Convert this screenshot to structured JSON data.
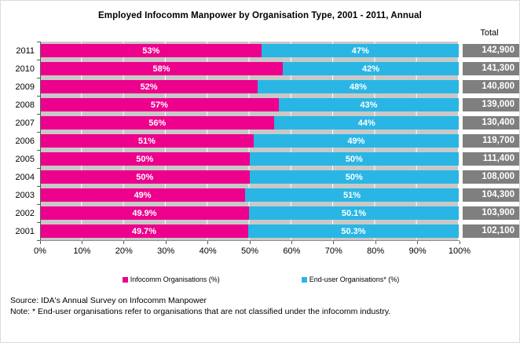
{
  "title": "Employed Infocomm Manpower by Organisation Type, 2001 - 2011, Annual",
  "total_label": "Total",
  "colors": {
    "infocomm": "#EC008C",
    "enduser": "#29B6E5",
    "total_badge": "#7F7F7F",
    "plot_background": "#C8C8C8",
    "gridline": "#FFFFFF",
    "axis": "#595959"
  },
  "footer": {
    "source": "Source: IDA's Annual Survey on Infocomm Manpower",
    "note": "Note: * End-user organisations refer to organisations that are not classified under the infocomm industry."
  },
  "chart_data": {
    "type": "bar",
    "variant": "horizontal-stacked",
    "title": "Employed Infocomm Manpower by Organisation Type, 2001 - 2011, Annual",
    "categories": [
      "2011",
      "2010",
      "2009",
      "2008",
      "2007",
      "2006",
      "2005",
      "2004",
      "2003",
      "2002",
      "2001"
    ],
    "series": [
      {
        "name": "Infocomm Organisations (%)",
        "color": "#EC008C",
        "values": [
          53,
          58,
          52,
          57,
          56,
          51,
          50,
          50,
          49,
          49.9,
          49.7
        ],
        "labels": [
          "53%",
          "58%",
          "52%",
          "57%",
          "56%",
          "51%",
          "50%",
          "50%",
          "49%",
          "49.9%",
          "49.7%"
        ]
      },
      {
        "name": "End-user Organisations* (%)",
        "color": "#29B6E5",
        "values": [
          47,
          42,
          48,
          43,
          44,
          49,
          50,
          50,
          51,
          50.1,
          50.3
        ],
        "labels": [
          "47%",
          "42%",
          "48%",
          "43%",
          "44%",
          "49%",
          "50%",
          "50%",
          "51%",
          "50.1%",
          "50.3%"
        ]
      }
    ],
    "totals": [
      "142,900",
      "141,300",
      "140,800",
      "139,000",
      "130,400",
      "119,700",
      "111,400",
      "108,000",
      "104,300",
      "103,900",
      "102,100"
    ],
    "x_ticks": [
      "0%",
      "10%",
      "20%",
      "30%",
      "40%",
      "50%",
      "60%",
      "70%",
      "80%",
      "90%",
      "100%"
    ],
    "xlim": [
      0,
      100
    ],
    "grid": true,
    "legend_position": "bottom"
  }
}
